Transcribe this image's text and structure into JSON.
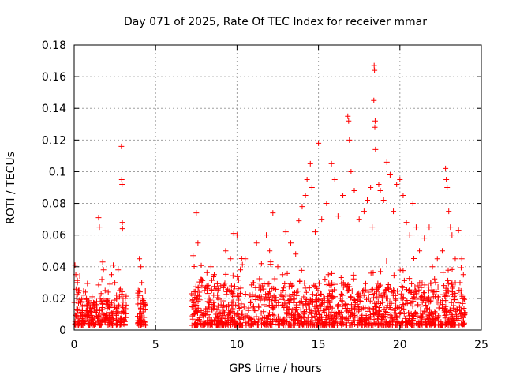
{
  "chart_data": {
    "type": "scatter",
    "title": "Day 071 of 2025, Rate Of TEC Index for receiver mmar",
    "xlabel": "GPS time / hours",
    "ylabel": "ROTI / TECUs",
    "xlim": [
      0,
      25
    ],
    "ylim": [
      0,
      0.18
    ],
    "xticks": [
      "0",
      "5",
      "10",
      "15",
      "20",
      "25"
    ],
    "yticks": [
      "0",
      "0.02",
      "0.04",
      "0.06",
      "0.08",
      "0.1",
      "0.12",
      "0.14",
      "0.16",
      "0.18"
    ],
    "grid": true,
    "marker": "+",
    "color": "#ff0000",
    "series": [
      {
        "points": [
          [
            0.05,
            0.041
          ],
          [
            0.1,
            0.035
          ],
          [
            0.2,
            0.03
          ],
          [
            0.3,
            0.025
          ],
          [
            0.15,
            0.02
          ],
          [
            0.4,
            0.018
          ],
          [
            0.5,
            0.015
          ],
          [
            0.6,
            0.022
          ],
          [
            0.7,
            0.024
          ],
          [
            0.8,
            0.012
          ],
          [
            0.9,
            0.01
          ],
          [
            1.0,
            0.014
          ],
          [
            1.1,
            0.021
          ],
          [
            1.2,
            0.016
          ],
          [
            1.3,
            0.011
          ],
          [
            1.4,
            0.013
          ],
          [
            1.5,
            0.071
          ],
          [
            1.55,
            0.065
          ],
          [
            1.6,
            0.02
          ],
          [
            1.7,
            0.032
          ],
          [
            1.75,
            0.043
          ],
          [
            1.8,
            0.038
          ],
          [
            1.9,
            0.025
          ],
          [
            2.0,
            0.018
          ],
          [
            2.1,
            0.015
          ],
          [
            2.2,
            0.029
          ],
          [
            2.3,
            0.035
          ],
          [
            2.4,
            0.041
          ],
          [
            2.5,
            0.03
          ],
          [
            2.6,
            0.022
          ],
          [
            2.7,
            0.038
          ],
          [
            2.8,
            0.025
          ],
          [
            2.9,
            0.116
          ],
          [
            2.92,
            0.095
          ],
          [
            2.94,
            0.092
          ],
          [
            2.96,
            0.068
          ],
          [
            2.97,
            0.064
          ],
          [
            3.0,
            0.02
          ],
          [
            3.05,
            0.012
          ],
          [
            4.0,
            0.045
          ],
          [
            4.1,
            0.04
          ],
          [
            4.15,
            0.03
          ],
          [
            4.2,
            0.02
          ],
          [
            4.25,
            0.015
          ],
          [
            4.3,
            0.008
          ],
          [
            4.35,
            0.005
          ],
          [
            7.3,
            0.047
          ],
          [
            7.5,
            0.074
          ],
          [
            7.6,
            0.055
          ],
          [
            7.8,
            0.032
          ],
          [
            8.0,
            0.025
          ],
          [
            8.2,
            0.018
          ],
          [
            8.4,
            0.04
          ],
          [
            8.6,
            0.035
          ],
          [
            8.8,
            0.022
          ],
          [
            9.0,
            0.028
          ],
          [
            9.3,
            0.05
          ],
          [
            9.6,
            0.045
          ],
          [
            9.8,
            0.061
          ],
          [
            10.0,
            0.06
          ],
          [
            10.2,
            0.038
          ],
          [
            10.5,
            0.045
          ],
          [
            10.8,
            0.022
          ],
          [
            11.0,
            0.03
          ],
          [
            11.2,
            0.055
          ],
          [
            11.5,
            0.042
          ],
          [
            11.8,
            0.06
          ],
          [
            12.0,
            0.05
          ],
          [
            12.2,
            0.074
          ],
          [
            12.5,
            0.04
          ],
          [
            12.8,
            0.035
          ],
          [
            13.0,
            0.062
          ],
          [
            13.3,
            0.055
          ],
          [
            13.6,
            0.048
          ],
          [
            13.8,
            0.069
          ],
          [
            14.0,
            0.078
          ],
          [
            14.2,
            0.085
          ],
          [
            14.3,
            0.095
          ],
          [
            14.5,
            0.105
          ],
          [
            14.6,
            0.09
          ],
          [
            14.8,
            0.062
          ],
          [
            15.0,
            0.118
          ],
          [
            15.2,
            0.07
          ],
          [
            15.5,
            0.08
          ],
          [
            15.8,
            0.105
          ],
          [
            16.0,
            0.095
          ],
          [
            16.2,
            0.072
          ],
          [
            16.5,
            0.085
          ],
          [
            16.8,
            0.135
          ],
          [
            16.85,
            0.132
          ],
          [
            16.9,
            0.12
          ],
          [
            17.0,
            0.1
          ],
          [
            17.2,
            0.088
          ],
          [
            17.5,
            0.07
          ],
          [
            17.8,
            0.075
          ],
          [
            18.0,
            0.082
          ],
          [
            18.2,
            0.09
          ],
          [
            18.3,
            0.065
          ],
          [
            18.4,
            0.145
          ],
          [
            18.42,
            0.167
          ],
          [
            18.44,
            0.164
          ],
          [
            18.46,
            0.128
          ],
          [
            18.48,
            0.132
          ],
          [
            18.5,
            0.114
          ],
          [
            18.7,
            0.092
          ],
          [
            18.8,
            0.088
          ],
          [
            19.0,
            0.082
          ],
          [
            19.2,
            0.106
          ],
          [
            19.4,
            0.098
          ],
          [
            19.6,
            0.075
          ],
          [
            19.8,
            0.092
          ],
          [
            20.0,
            0.095
          ],
          [
            20.2,
            0.085
          ],
          [
            20.4,
            0.068
          ],
          [
            20.6,
            0.06
          ],
          [
            20.8,
            0.08
          ],
          [
            21.0,
            0.065
          ],
          [
            21.2,
            0.05
          ],
          [
            21.5,
            0.058
          ],
          [
            21.8,
            0.065
          ],
          [
            22.0,
            0.04
          ],
          [
            22.3,
            0.045
          ],
          [
            22.6,
            0.05
          ],
          [
            22.8,
            0.102
          ],
          [
            22.85,
            0.095
          ],
          [
            22.9,
            0.09
          ],
          [
            23.0,
            0.075
          ],
          [
            23.1,
            0.065
          ],
          [
            23.2,
            0.06
          ],
          [
            23.4,
            0.045
          ],
          [
            23.6,
            0.063
          ],
          [
            23.8,
            0.045
          ],
          [
            23.9,
            0.035
          ]
        ],
        "baseline_segments": [
          {
            "x_from": 0.0,
            "x_to": 3.2,
            "y_low": 0.003,
            "y_high": 0.02,
            "n": 260
          },
          {
            "x_from": 3.9,
            "x_to": 4.4,
            "y_low": 0.003,
            "y_high": 0.025,
            "n": 50
          },
          {
            "x_from": 7.2,
            "x_to": 24.0,
            "y_low": 0.003,
            "y_high": 0.03,
            "n": 1400
          }
        ]
      }
    ]
  }
}
